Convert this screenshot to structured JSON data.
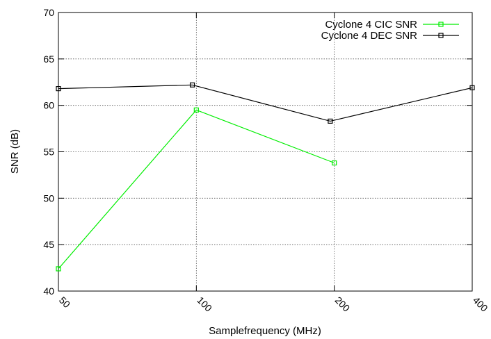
{
  "chart_data": {
    "type": "line",
    "title": "",
    "xlabel": "Samplefrequency (MHz)",
    "ylabel": "SNR (dB)",
    "x_scale": "log",
    "x_ticks": [
      50,
      100,
      200,
      400
    ],
    "x_tick_labels": [
      "50",
      "100",
      "200",
      "400"
    ],
    "xlim": [
      50,
      400
    ],
    "ylim": [
      40,
      70
    ],
    "y_ticks": [
      40,
      45,
      50,
      55,
      60,
      65,
      70
    ],
    "y_tick_labels": [
      "40",
      "45",
      "50",
      "55",
      "60",
      "65",
      "70"
    ],
    "grid": true,
    "legend_position": "top-right",
    "series": [
      {
        "name": "Cyclone 4 CIC SNR",
        "color": "#00ee00",
        "marker": "square",
        "x": [
          50,
          100,
          200
        ],
        "y": [
          42.4,
          59.5,
          53.8
        ]
      },
      {
        "name": "Cyclone 4 DEC SNR",
        "color": "#000000",
        "marker": "square",
        "x": [
          50,
          98,
          196,
          400
        ],
        "y": [
          61.8,
          62.2,
          58.3,
          61.9
        ]
      }
    ]
  }
}
